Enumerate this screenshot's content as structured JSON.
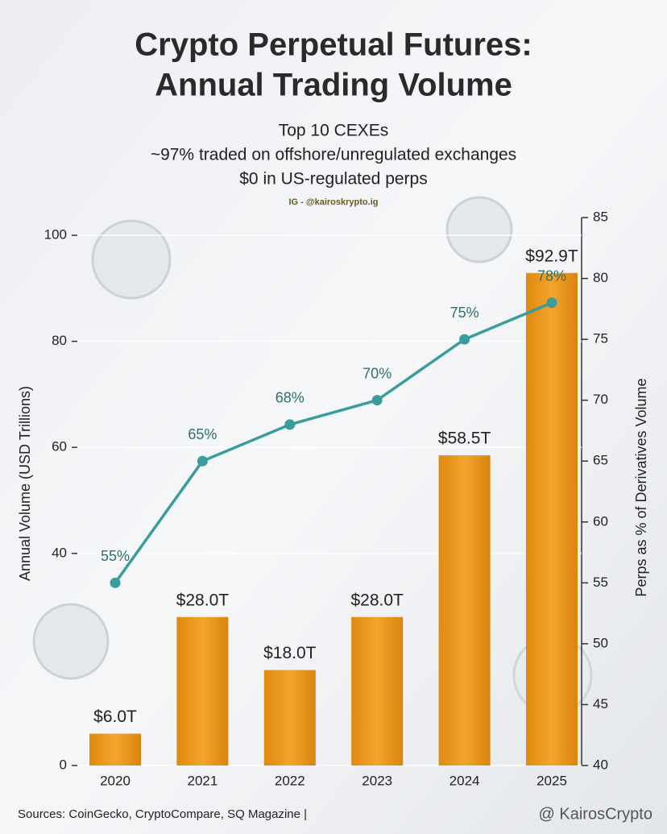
{
  "chart_data": {
    "type": "bar",
    "title": [
      "Crypto Perpetual Futures:",
      "Annual Trading Volume"
    ],
    "subtitle": [
      "Top 10 CEXEs",
      "~97% traded on offshore/unregulated exchanges",
      "$0 in US-regulated perps"
    ],
    "watermark": "IG - @kairoskrypto.ig",
    "ylabel": "Annual Volume (USD Trillions)",
    "y2label": "Perps as % of Derivatives Volume",
    "categories": [
      "2020",
      "2021",
      "2022",
      "2023",
      "2024",
      "2025"
    ],
    "series": [
      {
        "type": "bar",
        "color": "#ee9a22",
        "values": [
          6.0,
          28.0,
          18.0,
          28.0,
          58.5,
          92.9
        ],
        "value_labels": [
          "$6.0T",
          "$28.0T",
          "$18.0T",
          "$28.0T",
          "$58.5T",
          "$92.9T"
        ]
      },
      {
        "type": "line",
        "axis": "y2",
        "color": "#3a9c9c",
        "values": [
          55,
          65,
          68,
          70,
          75,
          78
        ],
        "value_labels": [
          "55%",
          "65%",
          "68%",
          "70%",
          "75%",
          "78%"
        ]
      }
    ],
    "ylim": [
      0,
      100
    ],
    "yticks": [
      0,
      40,
      60,
      80,
      100
    ],
    "y2lim": [
      40,
      85
    ],
    "y2ticks": [
      40,
      45,
      50,
      55,
      60,
      65,
      70,
      75,
      80,
      85
    ],
    "grid": true,
    "sources": "Sources: CoinGecko, CryptoCompare, SQ Magazine  |",
    "brand": "@ KairosCrypto"
  }
}
